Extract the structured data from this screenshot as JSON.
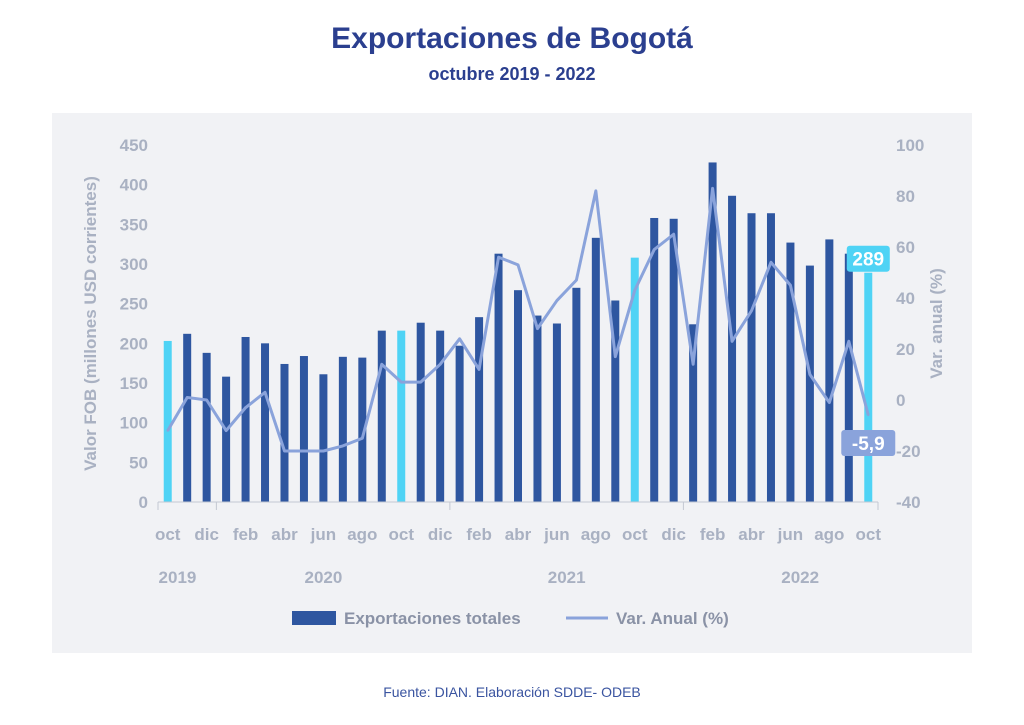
{
  "chart_data": {
    "type": "bar+line",
    "title": "Exportaciones de Bogotá",
    "subtitle": "octubre 2019 - 2022",
    "ylabel_left": "Valor FOB (millones USD corrientes)",
    "ylabel_right": "Var. anual (%)",
    "ylim_left": [
      0,
      450
    ],
    "yticks_left": [
      0,
      50,
      100,
      150,
      200,
      250,
      300,
      350,
      400,
      450
    ],
    "ylim_right": [
      -40,
      100
    ],
    "yticks_right": [
      -40,
      -20,
      0,
      20,
      40,
      60,
      80,
      100
    ],
    "month_tick_labels": [
      "oct",
      "dic",
      "feb",
      "abr",
      "jun",
      "ago",
      "oct",
      "dic",
      "feb",
      "abr",
      "jun",
      "ago",
      "oct",
      "dic",
      "feb",
      "abr",
      "jun",
      "ago",
      "oct"
    ],
    "year_labels": [
      {
        "label": "2019",
        "month_index": 0.5
      },
      {
        "label": "2020",
        "month_index": 8
      },
      {
        "label": "2021",
        "month_index": 20.5
      },
      {
        "label": "2022",
        "month_index": 32.5
      }
    ],
    "categories": [
      "2019-10",
      "2019-11",
      "2019-12",
      "2020-01",
      "2020-02",
      "2020-03",
      "2020-04",
      "2020-05",
      "2020-06",
      "2020-07",
      "2020-08",
      "2020-09",
      "2020-10",
      "2020-11",
      "2020-12",
      "2021-01",
      "2021-02",
      "2021-03",
      "2021-04",
      "2021-05",
      "2021-06",
      "2021-07",
      "2021-08",
      "2021-09",
      "2021-10",
      "2021-11",
      "2021-12",
      "2022-01",
      "2022-02",
      "2022-03",
      "2022-04",
      "2022-05",
      "2022-06",
      "2022-07",
      "2022-08",
      "2022-09",
      "2022-10"
    ],
    "highlighted_indices": [
      0,
      12,
      24,
      36
    ],
    "series": [
      {
        "name": "Exportaciones totales",
        "type": "bar",
        "color": "#2e56a0",
        "highlight_color": "#4fd3f5",
        "values": [
          203,
          212,
          188,
          158,
          208,
          200,
          174,
          184,
          161,
          183,
          182,
          216,
          216,
          226,
          216,
          197,
          233,
          313,
          267,
          235,
          225,
          270,
          333,
          254,
          308,
          358,
          357,
          224,
          428,
          386,
          364,
          364,
          327,
          298,
          331,
          313,
          289
        ]
      },
      {
        "name": "Var. Anual (%)",
        "type": "line",
        "axis": "right",
        "color": "#8aa3db",
        "values": [
          -12,
          1,
          0,
          -12,
          -3,
          3,
          -20,
          -20,
          -20,
          -18,
          -15,
          14,
          7,
          7,
          14,
          24,
          12,
          56,
          53,
          28,
          39,
          47,
          82,
          17,
          43,
          59,
          65,
          14,
          83,
          23,
          35,
          54,
          45,
          10,
          -1,
          23,
          -5.9
        ]
      }
    ],
    "data_labels": [
      {
        "series": 0,
        "index": 36,
        "text": "289",
        "bg": "#4fd3f5"
      },
      {
        "series": 1,
        "index": 36,
        "text": "-5,9",
        "bg": "#8aa3db"
      }
    ],
    "legend": [
      {
        "label": "Exportaciones totales",
        "kind": "bar",
        "color": "#2e56a0"
      },
      {
        "label": "Var. Anual (%)",
        "kind": "line",
        "color": "#8aa3db"
      }
    ],
    "axis_text_color": "#a9b1c2",
    "legend_text_color": "#8a92a6"
  },
  "source": "Fuente: DIAN. Elaboración SDDE- ODEB"
}
